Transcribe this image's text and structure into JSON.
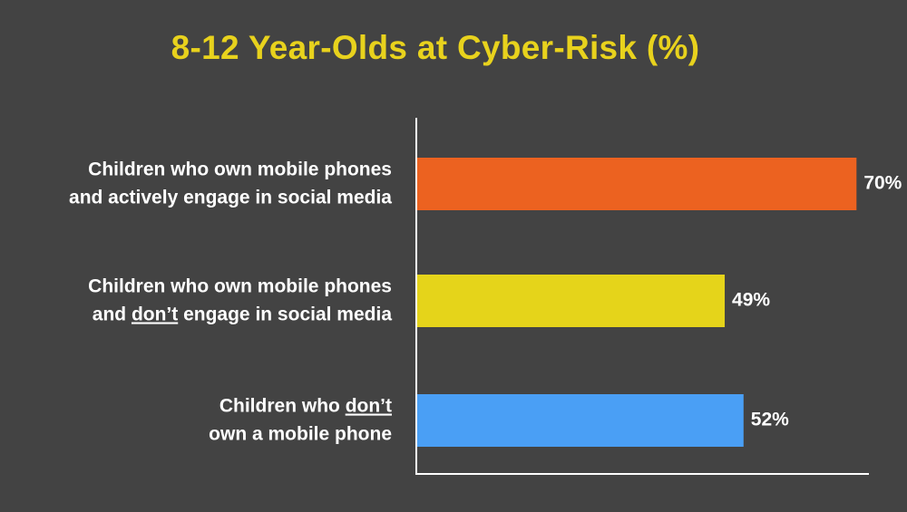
{
  "colors": {
    "background": "#434343",
    "title": "#E8D21D",
    "text": "#FFFFFF",
    "axis": "#FFFFFF"
  },
  "chart_data": {
    "type": "bar",
    "orientation": "horizontal",
    "title": "8-12 Year-Olds at Cyber-Risk (%)",
    "xlabel": "",
    "ylabel": "",
    "xlim": [
      0,
      74
    ],
    "grid": false,
    "legend": "none",
    "categories": [
      {
        "lines": [
          [
            {
              "text": "Children who own mobile phones"
            }
          ],
          [
            {
              "text": "and actively engage in social media"
            }
          ]
        ]
      },
      {
        "lines": [
          [
            {
              "text": "Children who own mobile phones"
            }
          ],
          [
            {
              "text": "and "
            },
            {
              "text": "don’t",
              "underline": true
            },
            {
              "text": " engage in social media"
            }
          ]
        ]
      },
      {
        "lines": [
          [
            {
              "text": "Children who "
            },
            {
              "text": "don’t",
              "underline": true
            }
          ],
          [
            {
              "text": "own a mobile phone"
            }
          ]
        ]
      }
    ],
    "values": [
      70,
      49,
      52
    ],
    "value_labels": [
      "70%",
      "49%",
      "52%"
    ],
    "bar_colors": [
      "#EC6220",
      "#E5D41A",
      "#4A9FF5"
    ]
  }
}
